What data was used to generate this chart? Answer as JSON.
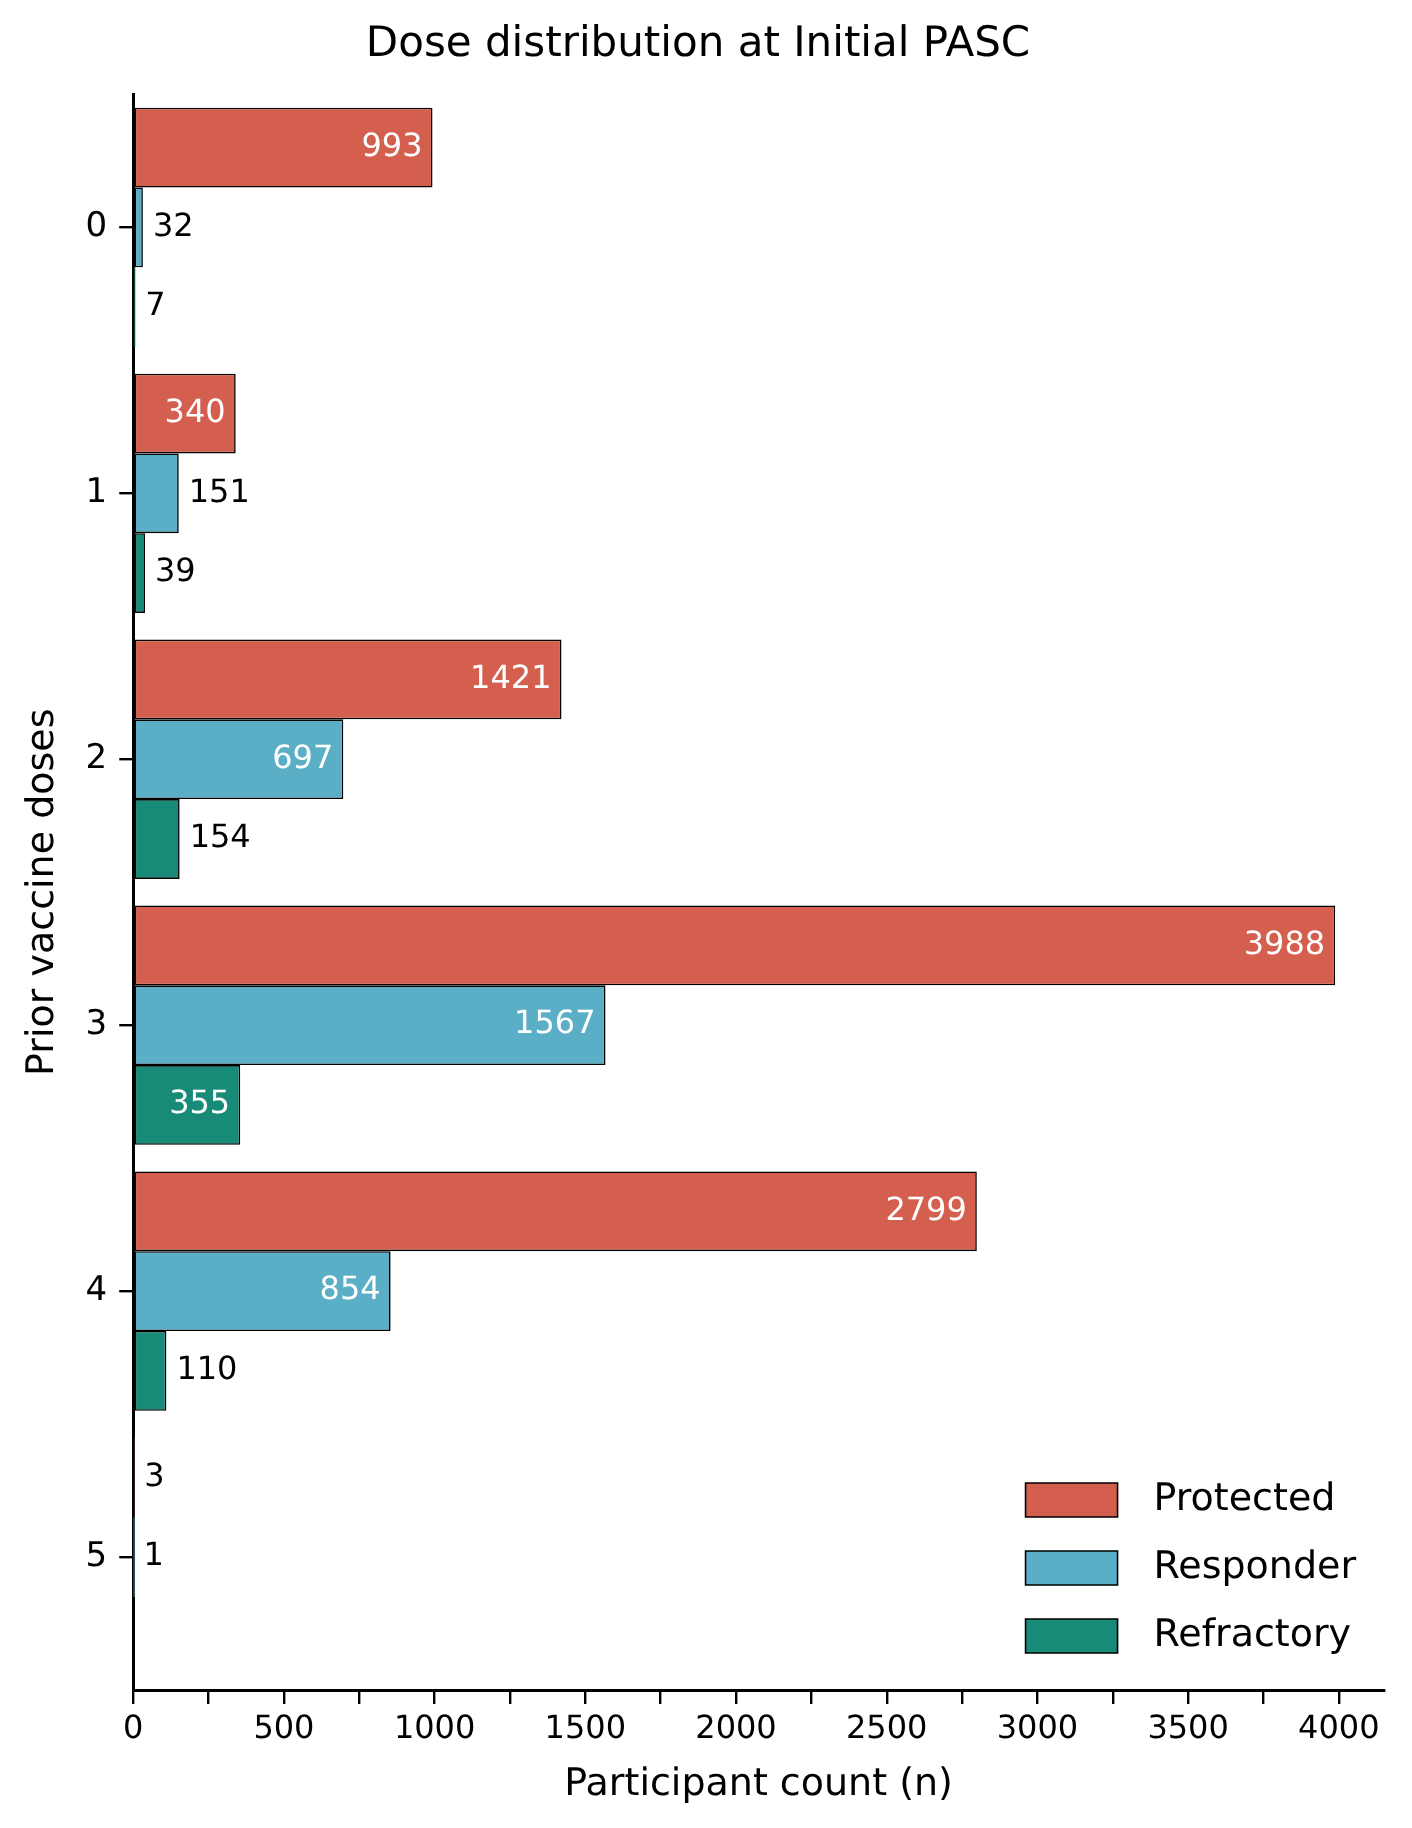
{
  "chart_data": {
    "type": "bar",
    "orientation": "horizontal",
    "title": "Dose distribution at Initial PASC",
    "xlabel": "Participant count (n)",
    "ylabel": "Prior vaccine doses",
    "categories": [
      "0",
      "1",
      "2",
      "3",
      "4",
      "5"
    ],
    "series": [
      {
        "name": "Protected",
        "color": "#d45f4e",
        "values": [
          993,
          340,
          1421,
          3988,
          2799,
          3
        ]
      },
      {
        "name": "Responder",
        "color": "#5aafc6",
        "values": [
          32,
          151,
          697,
          1567,
          854,
          1
        ]
      },
      {
        "name": "Refractory",
        "color": "#178a78",
        "values": [
          7,
          39,
          154,
          355,
          110,
          null
        ]
      }
    ],
    "xlim": [
      0,
      4150
    ],
    "xticks": [
      0,
      {
        "value": 250,
        "label": null
      },
      500,
      {
        "value": 750,
        "label": null
      },
      1000,
      {
        "value": 1250,
        "label": null
      },
      1500,
      {
        "value": 1750,
        "label": null
      },
      2000,
      {
        "value": 2250,
        "label": null
      },
      2500,
      {
        "value": 2750,
        "label": null
      },
      3000,
      {
        "value": 3250,
        "label": null
      },
      3500,
      {
        "value": 3750,
        "label": null
      },
      4000
    ],
    "data_labels": true,
    "legend": "bottom right",
    "grid": false
  }
}
